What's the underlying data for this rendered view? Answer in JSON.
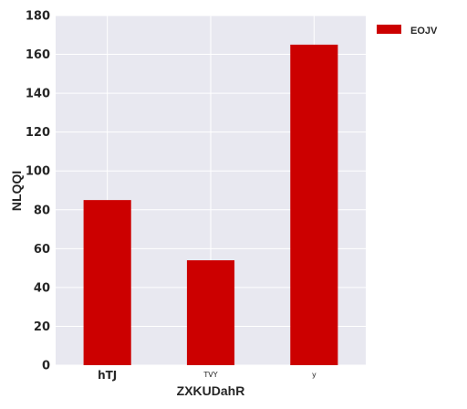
{
  "chart_data": {
    "type": "bar",
    "categories": [
      "hTJ",
      "TVY",
      "y"
    ],
    "series": [
      {
        "name": "EOJV",
        "values": [
          85,
          54,
          165
        ],
        "color": "#cc0000"
      }
    ],
    "xlabel": "ZXKUDahR",
    "ylabel": "NLQQI",
    "ylim": [
      0,
      180
    ],
    "yticks": [
      0,
      20,
      40,
      60,
      80,
      100,
      120,
      140,
      160,
      180
    ],
    "grid": true,
    "legend_position": "outside-top-right",
    "plot_background": "#e8e8f0"
  }
}
